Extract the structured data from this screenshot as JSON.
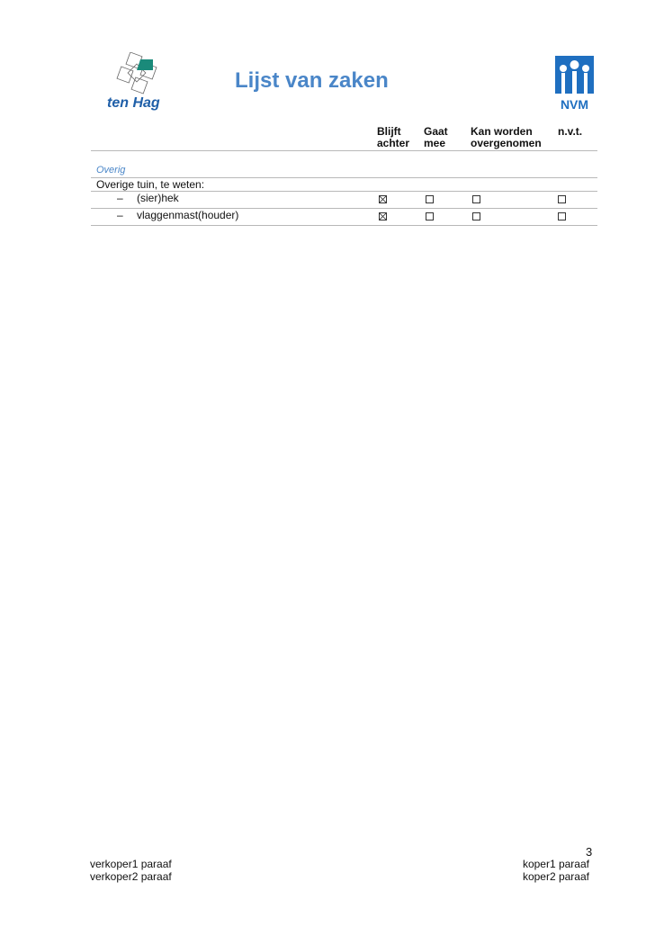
{
  "header": {
    "title": "Lijst van zaken",
    "brand_left": "ten Hag",
    "brand_right": "NVM",
    "accent": "#4a86c8"
  },
  "table": {
    "columns": [
      {
        "line1": "Blijft",
        "line2": "achter"
      },
      {
        "line1": "Gaat",
        "line2": "mee"
      },
      {
        "line1": "Kan worden",
        "line2": "overgenomen"
      },
      {
        "line1": "n.v.t.",
        "line2": ""
      }
    ],
    "section": "Overig",
    "group_label": "Overige tuin, te weten:",
    "rows": [
      {
        "dash": "–",
        "label": "(sier)hek",
        "checked": [
          true,
          false,
          false,
          false
        ]
      },
      {
        "dash": "–",
        "label": "vlaggenmast(houder)",
        "checked": [
          true,
          false,
          false,
          false
        ]
      }
    ]
  },
  "footer": {
    "page": "3",
    "left1": "verkoper1 paraaf",
    "left2": "verkoper2 paraaf",
    "right1": "koper1 paraaf",
    "right2": "koper2 paraaf"
  }
}
